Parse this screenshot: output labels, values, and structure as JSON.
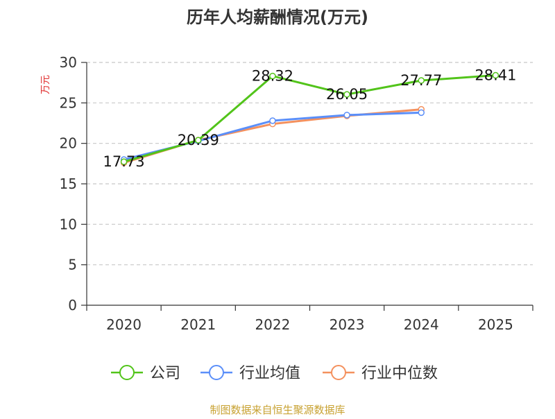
{
  "chart_data": {
    "type": "line",
    "title": "历年人均薪酬情况(万元)",
    "ylabel": "万元",
    "xlabel": "",
    "categories": [
      "2020",
      "2021",
      "2022",
      "2023",
      "2024",
      "2025"
    ],
    "ylim": [
      0,
      30
    ],
    "yticks": [
      0,
      5,
      10,
      15,
      20,
      25,
      30
    ],
    "grid": true,
    "legend_position": "bottom",
    "series": [
      {
        "name": "公司",
        "color": "#52c41a",
        "values": [
          17.73,
          20.39,
          28.32,
          26.05,
          27.77,
          28.41
        ],
        "labels": [
          "17.73",
          "20.39",
          "28.32",
          "26.05",
          "27.77",
          "28.41"
        ]
      },
      {
        "name": "行业均值",
        "color": "#5b8ff9",
        "values": [
          18.0,
          20.3,
          22.8,
          23.5,
          23.8,
          null
        ]
      },
      {
        "name": "行业中位数",
        "color": "#f4915e",
        "values": [
          17.6,
          20.4,
          22.4,
          23.4,
          24.2,
          null
        ]
      }
    ],
    "source": "制图数据来自恒生聚源数据库"
  }
}
